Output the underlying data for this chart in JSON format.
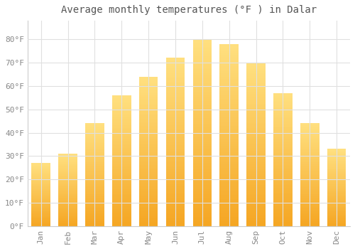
{
  "title": "Average monthly temperatures (°F ) in Dalar",
  "months": [
    "Jan",
    "Feb",
    "Mar",
    "Apr",
    "May",
    "Jun",
    "Jul",
    "Aug",
    "Sep",
    "Oct",
    "Nov",
    "Dec"
  ],
  "values": [
    27,
    31,
    44,
    56,
    64,
    72,
    80,
    78,
    70,
    57,
    44,
    33
  ],
  "bar_color_bottom": "#F5A623",
  "bar_color_top": "#FFE080",
  "ylim": [
    0,
    88
  ],
  "yticks": [
    0,
    10,
    20,
    30,
    40,
    50,
    60,
    70,
    80
  ],
  "ytick_labels": [
    "0°F",
    "10°F",
    "20°F",
    "30°F",
    "40°F",
    "50°F",
    "60°F",
    "70°F",
    "80°F"
  ],
  "background_color": "#ffffff",
  "plot_bg_color": "#ffffff",
  "grid_color": "#e0e0e0",
  "title_fontsize": 10,
  "tick_fontsize": 8,
  "bar_width": 0.7
}
